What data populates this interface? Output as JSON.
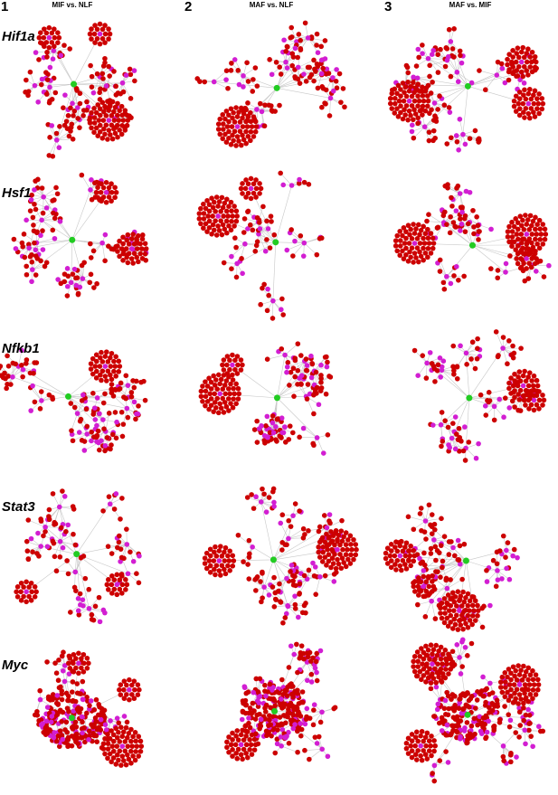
{
  "columns": [
    {
      "number": "1",
      "title": "MIF vs. NLF"
    },
    {
      "number": "2",
      "title": "MAF vs. NLF"
    },
    {
      "number": "3",
      "title": "MAF vs. MIF"
    }
  ],
  "rows": [
    {
      "gene": "Hif1a"
    },
    {
      "gene": "Hsf1"
    },
    {
      "gene": "Nfkb1"
    },
    {
      "gene": "Stat3"
    },
    {
      "gene": "Myc"
    }
  ]
}
